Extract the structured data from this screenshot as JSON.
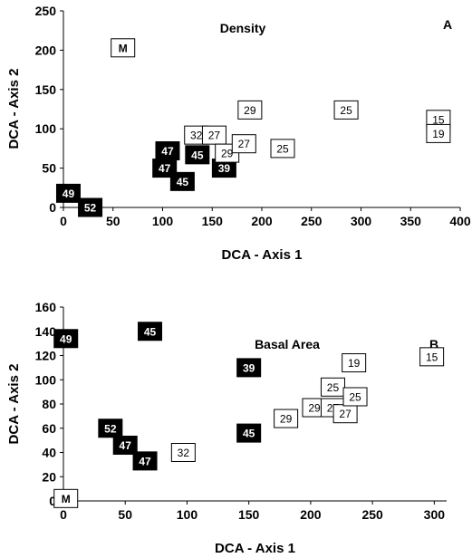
{
  "chart_data": [
    {
      "type": "scatter",
      "title": "Density",
      "panel_letter": "A",
      "xlabel": "DCA - Axis 1",
      "ylabel": "DCA - Axis 2",
      "xlim": [
        0,
        400
      ],
      "ylim": [
        0,
        250
      ],
      "xticks": [
        "0",
        "50",
        "100",
        "150",
        "200",
        "250",
        "300",
        "350",
        "400"
      ],
      "yticks": [
        "0",
        "50",
        "100",
        "150",
        "200",
        "250"
      ],
      "grid": false,
      "points": [
        {
          "x": 60,
          "y": 203,
          "label": "M",
          "style": "open"
        },
        {
          "x": 5,
          "y": 18,
          "label": "49",
          "style": "filled"
        },
        {
          "x": 27,
          "y": 0,
          "label": "52",
          "style": "filled"
        },
        {
          "x": 105,
          "y": 72,
          "label": "47",
          "style": "filled"
        },
        {
          "x": 102,
          "y": 50,
          "label": "47",
          "style": "filled"
        },
        {
          "x": 120,
          "y": 33,
          "label": "45",
          "style": "filled"
        },
        {
          "x": 135,
          "y": 67,
          "label": "45",
          "style": "filled"
        },
        {
          "x": 162,
          "y": 50,
          "label": "39",
          "style": "filled"
        },
        {
          "x": 134,
          "y": 92,
          "label": "32",
          "style": "open"
        },
        {
          "x": 152,
          "y": 92,
          "label": "27",
          "style": "open"
        },
        {
          "x": 165,
          "y": 69,
          "label": "29",
          "style": "open"
        },
        {
          "x": 182,
          "y": 81,
          "label": "27",
          "style": "open"
        },
        {
          "x": 188,
          "y": 124,
          "label": "29",
          "style": "open"
        },
        {
          "x": 221,
          "y": 75,
          "label": "25",
          "style": "open"
        },
        {
          "x": 285,
          "y": 124,
          "label": "25",
          "style": "open"
        },
        {
          "x": 378,
          "y": 112,
          "label": "15",
          "style": "open"
        },
        {
          "x": 378,
          "y": 94,
          "label": "19",
          "style": "open"
        }
      ]
    },
    {
      "type": "scatter",
      "title": "Basal Area",
      "panel_letter": "B",
      "xlabel": "DCA - Axis 1",
      "ylabel": "DCA - Axis 2",
      "xlim": [
        0,
        310
      ],
      "ylim": [
        0,
        160
      ],
      "xticks": [
        "0",
        "50",
        "100",
        "150",
        "200",
        "250",
        "300"
      ],
      "yticks": [
        "0",
        "20",
        "40",
        "60",
        "80",
        "100",
        "120",
        "140",
        "160"
      ],
      "grid": false,
      "points": [
        {
          "x": 2,
          "y": 2,
          "label": "M",
          "style": "open"
        },
        {
          "x": 2,
          "y": 134,
          "label": "49",
          "style": "filled"
        },
        {
          "x": 70,
          "y": 140,
          "label": "45",
          "style": "filled"
        },
        {
          "x": 150,
          "y": 110,
          "label": "39",
          "style": "filled"
        },
        {
          "x": 150,
          "y": 56,
          "label": "45",
          "style": "filled"
        },
        {
          "x": 38,
          "y": 60,
          "label": "52",
          "style": "filled"
        },
        {
          "x": 50,
          "y": 46,
          "label": "47",
          "style": "filled"
        },
        {
          "x": 66,
          "y": 33,
          "label": "47",
          "style": "filled"
        },
        {
          "x": 97,
          "y": 40,
          "label": "32",
          "style": "open"
        },
        {
          "x": 180,
          "y": 68,
          "label": "29",
          "style": "open"
        },
        {
          "x": 203,
          "y": 77,
          "label": "29",
          "style": "open"
        },
        {
          "x": 218,
          "y": 77,
          "label": "27",
          "style": "open"
        },
        {
          "x": 228,
          "y": 72,
          "label": "27",
          "style": "open"
        },
        {
          "x": 218,
          "y": 94,
          "label": "25",
          "style": "open"
        },
        {
          "x": 236,
          "y": 86,
          "label": "25",
          "style": "open"
        },
        {
          "x": 235,
          "y": 114,
          "label": "19",
          "style": "open"
        },
        {
          "x": 298,
          "y": 119,
          "label": "15",
          "style": "open"
        }
      ]
    }
  ]
}
